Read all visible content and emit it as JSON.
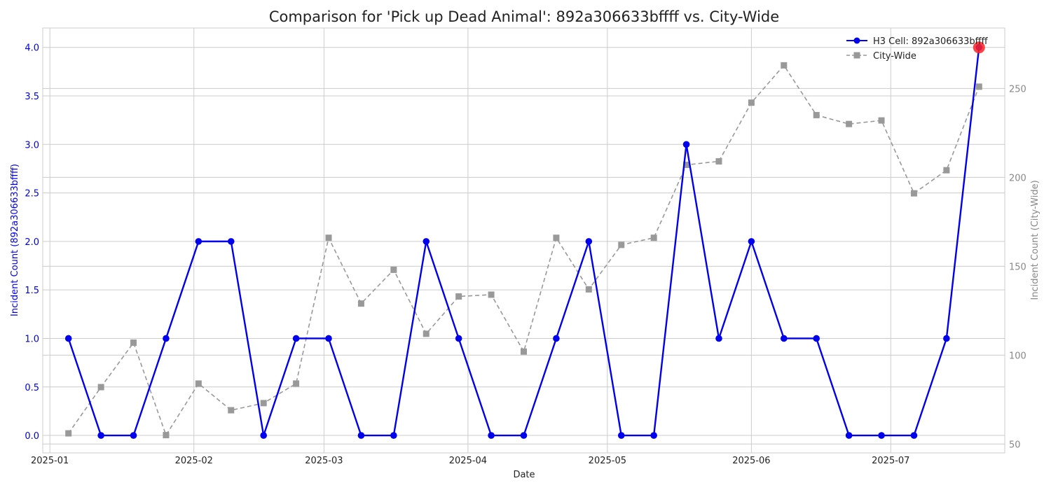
{
  "chart_data": {
    "type": "line",
    "title": "Comparison for 'Pick up Dead Animal': 892a306633bffff vs. City-Wide",
    "xlabel": "Date",
    "ylabel_left": "Incident Count (892a306633bffff)",
    "ylabel_right": "Incident Count (City-Wide)",
    "x": [
      "2025-01-05",
      "2025-01-12",
      "2025-01-19",
      "2025-01-26",
      "2025-02-02",
      "2025-02-09",
      "2025-02-16",
      "2025-02-23",
      "2025-03-02",
      "2025-03-09",
      "2025-03-16",
      "2025-03-23",
      "2025-03-30",
      "2025-04-06",
      "2025-04-13",
      "2025-04-20",
      "2025-04-27",
      "2025-05-04",
      "2025-05-11",
      "2025-05-18",
      "2025-05-25",
      "2025-06-01",
      "2025-06-08",
      "2025-06-15",
      "2025-06-22",
      "2025-06-29",
      "2025-07-06",
      "2025-07-13",
      "2025-07-20"
    ],
    "xticks": [
      "2025-01",
      "2025-02",
      "2025-03",
      "2025-04",
      "2025-05",
      "2025-06",
      "2025-07"
    ],
    "ylim_left": [
      -0.18,
      4.2
    ],
    "yticks_left": [
      "0.0",
      "0.5",
      "1.0",
      "1.5",
      "2.0",
      "2.5",
      "3.0",
      "3.5",
      "4.0"
    ],
    "ylim_right": [
      45,
      284
    ],
    "yticks_right": [
      "50",
      "100",
      "150",
      "200",
      "250"
    ],
    "grid": true,
    "legend_position": "top-right",
    "series": [
      {
        "name": "H3 Cell: 892a306633bffff",
        "axis": "left",
        "color": "#0000ee",
        "style": "solid",
        "marker": "circle",
        "values": [
          1,
          0,
          0,
          1,
          2,
          2,
          0,
          1,
          1,
          0,
          0,
          2,
          1,
          0,
          0,
          1,
          2,
          0,
          0,
          3,
          1,
          2,
          1,
          1,
          0,
          0,
          0,
          1,
          4
        ]
      },
      {
        "name": "City-Wide",
        "axis": "right",
        "color": "#999999",
        "style": "dashed",
        "marker": "square",
        "values": [
          56,
          82,
          107,
          55,
          84,
          69,
          73,
          84,
          166,
          129,
          148,
          112,
          133,
          134,
          102,
          166,
          137,
          162,
          166,
          207,
          209,
          242,
          263,
          235,
          230,
          232,
          191,
          204,
          251
        ]
      }
    ],
    "highlight": {
      "series": 0,
      "index": 28,
      "color": "#ff2222"
    }
  }
}
